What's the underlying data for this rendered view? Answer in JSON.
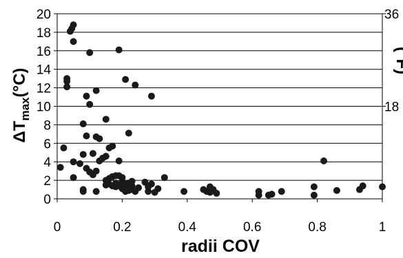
{
  "chart_data": {
    "type": "scatter",
    "xlabel": "radii COV",
    "ylabel": "ΔT",
    "ylabel_sub": "max",
    "ylabel_unit": "(°C)",
    "y2label": "(°F)",
    "xlim": [
      0,
      1
    ],
    "ylim": [
      0,
      20
    ],
    "y2lim": [
      0,
      36
    ],
    "xticks": [
      "0",
      "0.2",
      "0.4",
      "0.6",
      "0.8",
      "1"
    ],
    "yticks": [
      "0",
      "2",
      "4",
      "6",
      "8",
      "10",
      "12",
      "14",
      "16",
      "18",
      "20"
    ],
    "y2ticks": [
      "18",
      "36"
    ],
    "grid": "horizontal",
    "marker_color": "#1a1a1a",
    "points": [
      [
        0.01,
        3.4
      ],
      [
        0.02,
        5.5
      ],
      [
        0.03,
        13.0
      ],
      [
        0.03,
        12.7
      ],
      [
        0.03,
        12.1
      ],
      [
        0.04,
        18.1
      ],
      [
        0.045,
        18.4
      ],
      [
        0.05,
        18.8
      ],
      [
        0.05,
        17.0
      ],
      [
        0.05,
        4.0
      ],
      [
        0.05,
        2.3
      ],
      [
        0.07,
        3.8
      ],
      [
        0.08,
        8.1
      ],
      [
        0.08,
        4.8
      ],
      [
        0.08,
        1.0
      ],
      [
        0.08,
        0.8
      ],
      [
        0.09,
        11.1
      ],
      [
        0.09,
        6.8
      ],
      [
        0.09,
        3.3
      ],
      [
        0.1,
        15.8
      ],
      [
        0.1,
        10.2
      ],
      [
        0.1,
        2.9
      ],
      [
        0.11,
        4.9
      ],
      [
        0.11,
        2.6
      ],
      [
        0.12,
        11.7
      ],
      [
        0.12,
        6.7
      ],
      [
        0.12,
        3.0
      ],
      [
        0.12,
        0.8
      ],
      [
        0.13,
        6.5
      ],
      [
        0.13,
        4.1
      ],
      [
        0.14,
        4.4
      ],
      [
        0.15,
        8.6
      ],
      [
        0.15,
        4.6
      ],
      [
        0.15,
        2.0
      ],
      [
        0.15,
        1.5
      ],
      [
        0.16,
        5.5
      ],
      [
        0.16,
        2.2
      ],
      [
        0.16,
        1.6
      ],
      [
        0.17,
        5.7
      ],
      [
        0.17,
        2.4
      ],
      [
        0.17,
        1.4
      ],
      [
        0.18,
        2.5
      ],
      [
        0.18,
        1.7
      ],
      [
        0.18,
        1.3
      ],
      [
        0.19,
        16.1
      ],
      [
        0.19,
        4.1
      ],
      [
        0.19,
        2.5
      ],
      [
        0.19,
        1.4
      ],
      [
        0.2,
        2.3
      ],
      [
        0.2,
        1.9
      ],
      [
        0.2,
        1.5
      ],
      [
        0.2,
        1.1
      ],
      [
        0.21,
        12.9
      ],
      [
        0.21,
        1.6
      ],
      [
        0.21,
        1.2
      ],
      [
        0.21,
        0.8
      ],
      [
        0.22,
        7.1
      ],
      [
        0.22,
        1.7
      ],
      [
        0.22,
        1.3
      ],
      [
        0.22,
        0.9
      ],
      [
        0.23,
        1.9
      ],
      [
        0.23,
        1.4
      ],
      [
        0.23,
        1.0
      ],
      [
        0.24,
        12.3
      ],
      [
        0.24,
        0.8
      ],
      [
        0.25,
        1.2
      ],
      [
        0.27,
        1.8
      ],
      [
        0.28,
        1.3
      ],
      [
        0.28,
        0.8
      ],
      [
        0.29,
        11.1
      ],
      [
        0.29,
        1.6
      ],
      [
        0.3,
        0.7
      ],
      [
        0.31,
        1.1
      ],
      [
        0.33,
        2.3
      ],
      [
        0.39,
        0.8
      ],
      [
        0.45,
        1.0
      ],
      [
        0.46,
        0.8
      ],
      [
        0.47,
        1.3
      ],
      [
        0.47,
        0.7
      ],
      [
        0.48,
        1.0
      ],
      [
        0.49,
        0.6
      ],
      [
        0.62,
        0.8
      ],
      [
        0.62,
        0.4
      ],
      [
        0.65,
        0.4
      ],
      [
        0.66,
        0.5
      ],
      [
        0.69,
        0.8
      ],
      [
        0.79,
        1.3
      ],
      [
        0.79,
        0.4
      ],
      [
        0.82,
        4.1
      ],
      [
        0.86,
        0.9
      ],
      [
        0.93,
        1.0
      ],
      [
        0.94,
        1.4
      ],
      [
        1.0,
        1.3
      ]
    ]
  }
}
